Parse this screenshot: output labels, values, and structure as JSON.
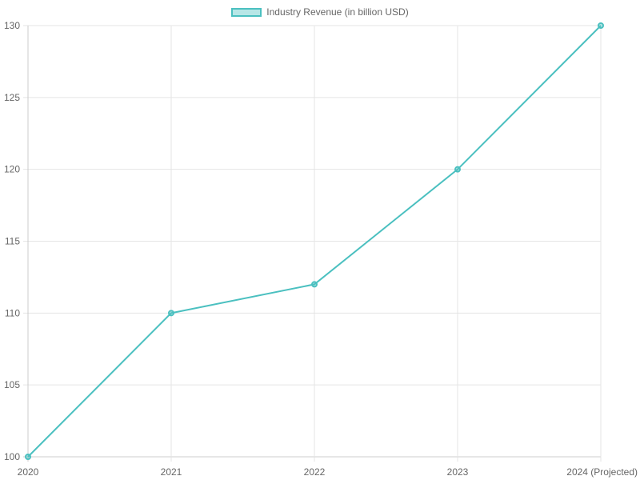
{
  "chart_data": {
    "type": "line",
    "title": "",
    "xlabel": "",
    "ylabel": "",
    "categories": [
      "2020",
      "2021",
      "2022",
      "2023",
      "2024 (Projected)"
    ],
    "series": [
      {
        "name": "Industry Revenue (in billion USD)",
        "values": [
          100,
          110,
          112,
          120,
          130
        ],
        "color": "#4bc0c0"
      }
    ],
    "ylim": [
      100,
      130
    ],
    "yticks": [
      100,
      105,
      110,
      115,
      120,
      125,
      130
    ],
    "grid": true,
    "legend_position": "top"
  },
  "legend": {
    "label": "Industry Revenue (in billion USD)"
  }
}
